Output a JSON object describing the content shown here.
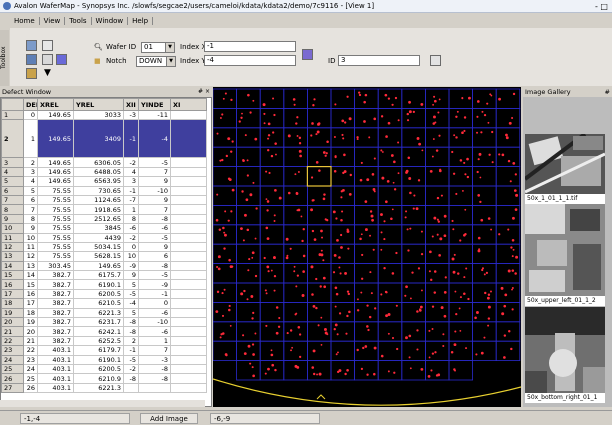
{
  "window": {
    "title": "Avalon WaferMap - Synopsys Inc. /slowfs/segcae2/users/cameloi/kdata/kdata2/demo/7c9116 - [View 1]",
    "controls": "- □"
  },
  "menu": [
    "Home",
    "View",
    "Tools",
    "Window",
    "Help"
  ],
  "toolbox_label": "Toolbox",
  "controls": {
    "wafer_id_label": "Wafer ID",
    "wafer_id_value": "01",
    "notch_label": "Notch",
    "notch_value": "DOWN",
    "index_x_label": "Index X",
    "index_x_value": "-1",
    "index_y_label": "Index Y",
    "index_y_value": "-4",
    "id_label": "ID",
    "id_value": "3"
  },
  "defect_window": {
    "title": "Defect Window",
    "dock": "# ×",
    "columns": [
      "",
      "DEFI",
      "XREL",
      "YREL",
      "XII",
      "YINDE",
      "XI"
    ],
    "rows": [
      [
        "1",
        "0",
        "149.65",
        "3033",
        "-3",
        "-11",
        ""
      ],
      [
        "2",
        "1",
        "149.65",
        "3409",
        "-1",
        "-4",
        ""
      ],
      [
        "3",
        "2",
        "149.65",
        "6306.05",
        "-2",
        "-5",
        ""
      ],
      [
        "4",
        "3",
        "149.65",
        "6488.05",
        "4",
        "7",
        ""
      ],
      [
        "5",
        "4",
        "149.65",
        "6563.95",
        "3",
        "9",
        ""
      ],
      [
        "6",
        "5",
        "75.55",
        "730.65",
        "-1",
        "-10",
        ""
      ],
      [
        "7",
        "6",
        "75.55",
        "1124.65",
        "-7",
        "9",
        ""
      ],
      [
        "8",
        "7",
        "75.55",
        "1918.65",
        "1",
        "7",
        ""
      ],
      [
        "9",
        "8",
        "75.55",
        "2512.65",
        "8",
        "-8",
        ""
      ],
      [
        "10",
        "9",
        "75.55",
        "3845",
        "-6",
        "-6",
        ""
      ],
      [
        "11",
        "10",
        "75.55",
        "4439",
        "-2",
        "-5",
        ""
      ],
      [
        "12",
        "11",
        "75.55",
        "5034.15",
        "0",
        "9",
        ""
      ],
      [
        "13",
        "12",
        "75.55",
        "5628.15",
        "10",
        "6",
        ""
      ],
      [
        "14",
        "13",
        "303.45",
        "149.65",
        "-9",
        "-8",
        ""
      ],
      [
        "15",
        "14",
        "382.7",
        "6175.7",
        "9",
        "-5",
        ""
      ],
      [
        "16",
        "15",
        "382.7",
        "6190.1",
        "5",
        "-9",
        ""
      ],
      [
        "17",
        "16",
        "382.7",
        "6200.5",
        "-5",
        "-1",
        ""
      ],
      [
        "18",
        "17",
        "382.7",
        "6210.5",
        "-4",
        "0",
        ""
      ],
      [
        "19",
        "18",
        "382.7",
        "6221.3",
        "5",
        "-6",
        ""
      ],
      [
        "20",
        "19",
        "382.7",
        "6231.7",
        "-8",
        "-10",
        ""
      ],
      [
        "21",
        "20",
        "382.7",
        "6242.1",
        "-8",
        "-6",
        ""
      ],
      [
        "22",
        "21",
        "382.7",
        "6252.5",
        "2",
        "1",
        ""
      ],
      [
        "23",
        "22",
        "403.1",
        "6179.7",
        "-1",
        "7",
        ""
      ],
      [
        "24",
        "23",
        "403.1",
        "6190.1",
        "-5",
        "-3",
        ""
      ],
      [
        "25",
        "24",
        "403.1",
        "6200.5",
        "-2",
        "-8",
        ""
      ],
      [
        "26",
        "25",
        "403.1",
        "6210.9",
        "-8",
        "-8",
        ""
      ],
      [
        "27",
        "26",
        "403.1",
        "6221.3",
        "",
        "",
        ""
      ]
    ]
  },
  "gallery": {
    "title": "Image Gallery",
    "dock": "#",
    "items": [
      "50x_1_01_1_1.tif",
      "50x_upper_left_01_1_2",
      "50x_bottom_right_01_1"
    ]
  },
  "status": {
    "left": "-1,-4",
    "button": "Add Image",
    "coord": "-6,-9"
  },
  "colors": {
    "grid": "#2a2acc",
    "defect": "#ff2a3a",
    "selection": "#e8c43a",
    "wafer_edge": "#e8d030",
    "selected_row": "#3f3f9e"
  }
}
